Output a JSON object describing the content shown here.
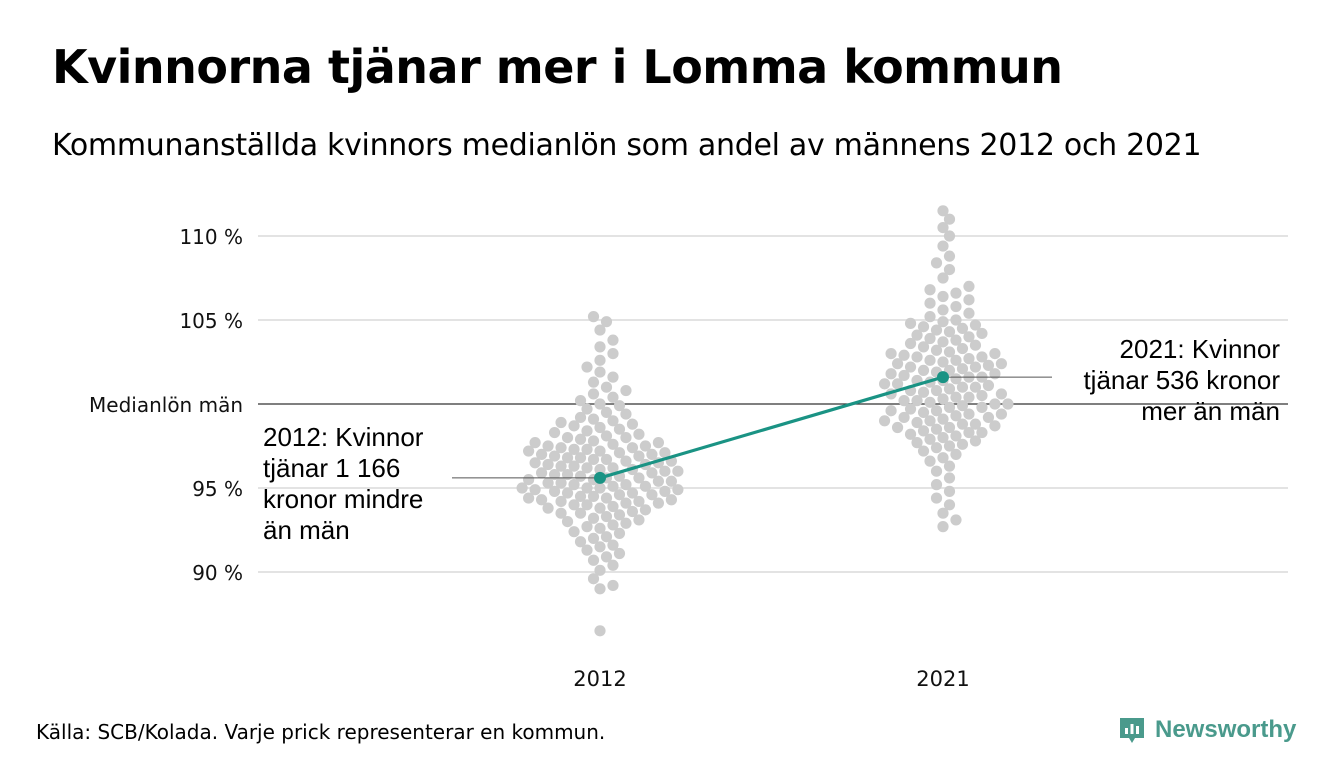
{
  "title": "Kvinnorna tjänar mer i Lomma kommun",
  "subtitle": "Kommunanställda kvinnors medianlön som andel av männens 2012 och 2021",
  "footer": {
    "source": "Källa: SCB/Kolada. Varje prick representerar en kommun.",
    "brand": "Newsworthy",
    "brand_icon": "newsworthy-logo-icon"
  },
  "colors": {
    "dots": "#cccccc",
    "highlight": "#1a9384",
    "grid": "#e3e3e3",
    "reference_line": "#333333",
    "brand": "#4a9a8c"
  },
  "chart_data": {
    "type": "scatter",
    "subtype": "beeswarm with highlighted connecting line",
    "categories": [
      "2012",
      "2021"
    ],
    "y_ticks": [
      {
        "value": 90,
        "label": "90 %"
      },
      {
        "value": 95,
        "label": "95 %"
      },
      {
        "value": 100,
        "label": "Medianlön män"
      },
      {
        "value": 105,
        "label": "105 %"
      },
      {
        "value": 110,
        "label": "110 %"
      }
    ],
    "ylim": [
      85.5,
      112
    ],
    "grid": true,
    "reference_value": 100,
    "series": [
      {
        "category": "2012",
        "name": "Lomma",
        "value": 95.6
      },
      {
        "category": "2021",
        "name": "Lomma",
        "value": 101.6
      }
    ],
    "swarms": [
      {
        "category": "2012",
        "min": 86.5,
        "max": 105.2,
        "values": [
          86.5,
          89.0,
          89.2,
          89.6,
          90.1,
          90.4,
          90.7,
          90.9,
          91.1,
          91.3,
          91.5,
          91.6,
          91.8,
          92.0,
          92.1,
          92.3,
          92.4,
          92.6,
          92.7,
          92.8,
          92.9,
          93.0,
          93.1,
          93.2,
          93.3,
          93.4,
          93.5,
          93.5,
          93.6,
          93.7,
          93.8,
          93.8,
          93.9,
          94.0,
          94.0,
          94.1,
          94.1,
          94.2,
          94.2,
          94.3,
          94.3,
          94.4,
          94.4,
          94.5,
          94.5,
          94.6,
          94.6,
          94.7,
          94.7,
          94.8,
          94.8,
          94.9,
          94.9,
          95.0,
          95.0,
          95.0,
          95.1,
          95.1,
          95.2,
          95.2,
          95.3,
          95.3,
          95.4,
          95.4,
          95.5,
          95.5,
          95.6,
          95.6,
          95.7,
          95.7,
          95.8,
          95.8,
          95.9,
          95.9,
          96.0,
          96.0,
          96.1,
          96.1,
          96.2,
          96.2,
          96.3,
          96.3,
          96.4,
          96.4,
          96.5,
          96.5,
          96.6,
          96.6,
          96.7,
          96.7,
          96.8,
          96.8,
          96.9,
          96.9,
          97.0,
          97.0,
          97.1,
          97.1,
          97.2,
          97.2,
          97.3,
          97.3,
          97.4,
          97.4,
          97.5,
          97.5,
          97.6,
          97.7,
          97.7,
          97.8,
          97.9,
          98.0,
          98.0,
          98.1,
          98.2,
          98.3,
          98.4,
          98.5,
          98.6,
          98.7,
          98.8,
          98.9,
          99.0,
          99.1,
          99.2,
          99.4,
          99.5,
          99.7,
          99.9,
          100.0,
          100.2,
          100.4,
          100.6,
          100.8,
          101.0,
          101.3,
          101.6,
          101.9,
          102.2,
          102.6,
          103.0,
          103.4,
          103.8,
          104.4,
          104.9,
          105.2
        ]
      },
      {
        "category": "2021",
        "min": 92.7,
        "max": 111.5,
        "values": [
          92.7,
          93.1,
          93.5,
          94.0,
          94.4,
          94.8,
          95.2,
          95.6,
          96.0,
          96.3,
          96.6,
          96.8,
          97.0,
          97.2,
          97.4,
          97.5,
          97.6,
          97.7,
          97.8,
          97.9,
          98.0,
          98.1,
          98.2,
          98.3,
          98.3,
          98.4,
          98.5,
          98.6,
          98.6,
          98.7,
          98.8,
          98.8,
          98.9,
          99.0,
          99.0,
          99.1,
          99.2,
          99.2,
          99.3,
          99.4,
          99.4,
          99.5,
          99.6,
          99.6,
          99.7,
          99.8,
          99.8,
          99.9,
          100.0,
          100.0,
          100.1,
          100.2,
          100.2,
          100.3,
          100.4,
          100.4,
          100.5,
          100.6,
          100.6,
          100.7,
          100.8,
          100.8,
          100.9,
          101.0,
          101.0,
          101.1,
          101.2,
          101.2,
          101.3,
          101.4,
          101.4,
          101.5,
          101.6,
          101.6,
          101.7,
          101.8,
          101.8,
          101.9,
          102.0,
          102.0,
          102.1,
          102.2,
          102.2,
          102.3,
          102.4,
          102.4,
          102.5,
          102.6,
          102.6,
          102.7,
          102.8,
          102.8,
          102.9,
          103.0,
          103.0,
          103.1,
          103.2,
          103.3,
          103.4,
          103.5,
          103.6,
          103.7,
          103.8,
          103.9,
          104.0,
          104.1,
          104.2,
          104.3,
          104.4,
          104.5,
          104.6,
          104.7,
          104.8,
          104.9,
          105.0,
          105.2,
          105.4,
          105.6,
          105.8,
          106.0,
          106.2,
          106.4,
          106.6,
          106.8,
          107.0,
          107.5,
          108.0,
          108.4,
          108.8,
          109.4,
          110.0,
          110.5,
          111.0,
          111.5
        ]
      }
    ],
    "annotations": [
      {
        "category": "2012",
        "lines": [
          "2012: Kvinnor",
          "tjänar 1 166",
          "kronor mindre",
          "än män"
        ]
      },
      {
        "category": "2021",
        "lines": [
          "2021: Kvinnor",
          "tjänar 536 kronor",
          "mer än män"
        ]
      }
    ]
  }
}
